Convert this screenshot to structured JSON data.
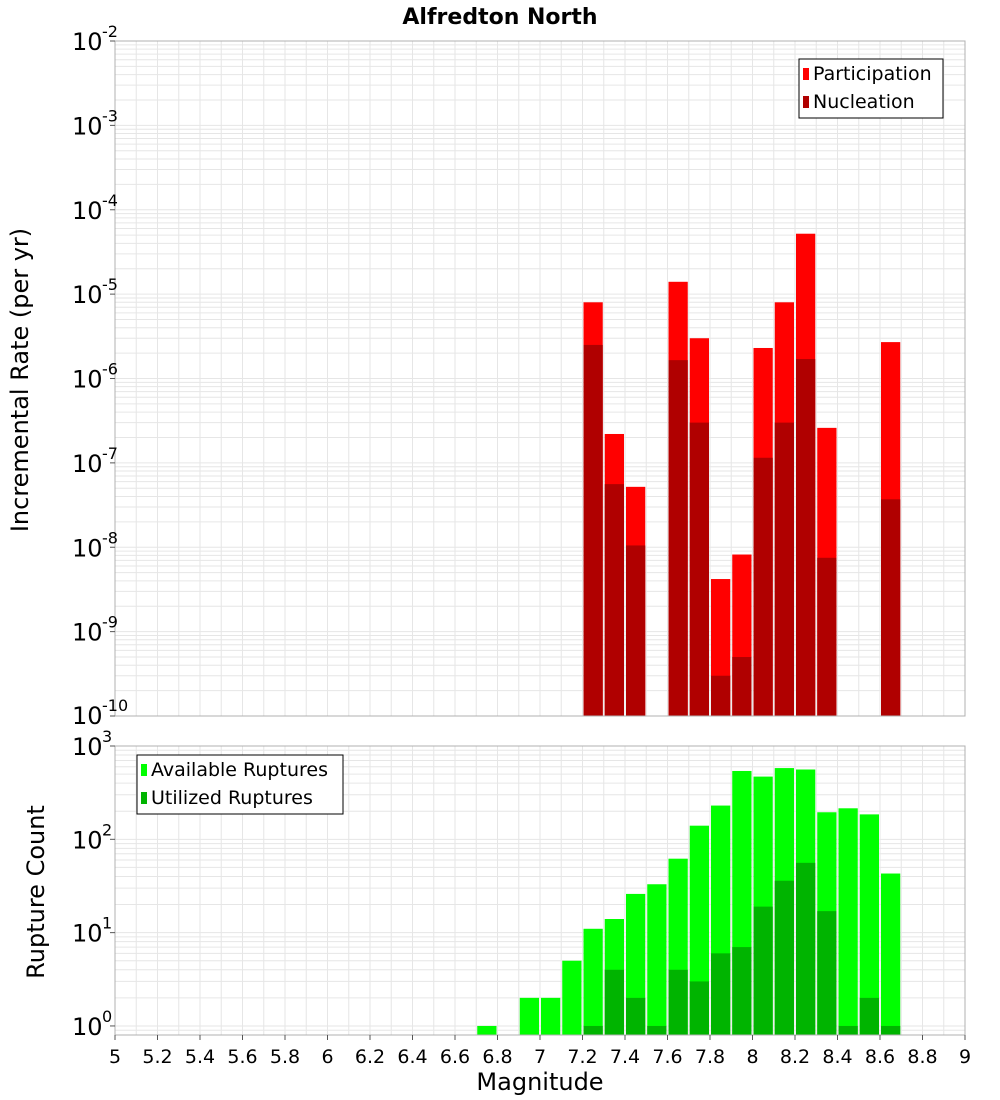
{
  "colors": {
    "participation": "#ff0000",
    "nucleation": "#b00000",
    "available": "#00ff00",
    "utilized": "#00b400",
    "grid": "#e6e6e6",
    "frame": "#b0b0b0"
  },
  "chart_data": [
    {
      "type": "bar",
      "title": "Alfredton North",
      "ylabel": "Incremental Rate (per yr)",
      "xlim": [
        5,
        9
      ],
      "ylim": [
        1e-10,
        0.01
      ],
      "yscale": "log",
      "bar_width": 0.1,
      "legend_position": "top-right",
      "x": [
        7.25,
        7.35,
        7.45,
        7.65,
        7.75,
        7.85,
        7.95,
        8.05,
        8.15,
        8.25,
        8.35,
        8.65
      ],
      "series": [
        {
          "name": "Participation",
          "values": [
            8e-06,
            2.2e-07,
            5.2e-08,
            1.4e-05,
            3e-06,
            4.2e-09,
            8.2e-09,
            2.3e-06,
            8e-06,
            5.2e-05,
            2.6e-07,
            2.7e-06
          ]
        },
        {
          "name": "Nucleation",
          "values": [
            2.5e-06,
            5.6e-08,
            1.05e-08,
            1.65e-06,
            3e-07,
            3e-10,
            5e-10,
            1.15e-07,
            3e-07,
            1.7e-06,
            7.5e-09,
            3.7e-08
          ]
        }
      ],
      "yticks": [
        {
          "base": "10",
          "exp": "-2"
        },
        {
          "base": "10",
          "exp": "-3"
        },
        {
          "base": "10",
          "exp": "-4"
        },
        {
          "base": "10",
          "exp": "-5"
        },
        {
          "base": "10",
          "exp": "-6"
        },
        {
          "base": "10",
          "exp": "-7"
        },
        {
          "base": "10",
          "exp": "-8"
        },
        {
          "base": "10",
          "exp": "-9"
        },
        {
          "base": "10",
          "exp": "-10"
        }
      ]
    },
    {
      "type": "bar",
      "ylabel": "Rupture Count",
      "xlabel": "Magnitude",
      "xlim": [
        5,
        9
      ],
      "ylim": [
        0.8,
        1000
      ],
      "yscale": "log",
      "bar_width": 0.1,
      "legend_position": "top-left",
      "x": [
        6.75,
        6.95,
        7.05,
        7.15,
        7.25,
        7.35,
        7.45,
        7.55,
        7.65,
        7.75,
        7.85,
        7.95,
        8.05,
        8.15,
        8.25,
        8.35,
        8.45,
        8.55,
        8.65
      ],
      "series": [
        {
          "name": "Available Ruptures",
          "values": [
            1,
            2,
            2,
            5,
            11,
            14,
            26,
            33,
            62,
            140,
            230,
            540,
            470,
            580,
            560,
            195,
            215,
            185,
            43
          ]
        },
        {
          "name": "Utilized Ruptures",
          "values": [
            null,
            null,
            null,
            null,
            1,
            4,
            2,
            1,
            4,
            3,
            6,
            7,
            19,
            36,
            56,
            17,
            1,
            2,
            1
          ]
        }
      ],
      "yticks": [
        {
          "base": "10",
          "exp": "3"
        },
        {
          "base": "10",
          "exp": "2"
        },
        {
          "base": "10",
          "exp": "1"
        },
        {
          "base": "10",
          "exp": "0"
        }
      ],
      "xticks": [
        "5",
        "5.2",
        "5.4",
        "5.6",
        "5.8",
        "6",
        "6.2",
        "6.4",
        "6.6",
        "6.8",
        "7",
        "7.2",
        "7.4",
        "7.6",
        "7.8",
        "8",
        "8.2",
        "8.4",
        "8.6",
        "8.8",
        "9"
      ]
    }
  ]
}
